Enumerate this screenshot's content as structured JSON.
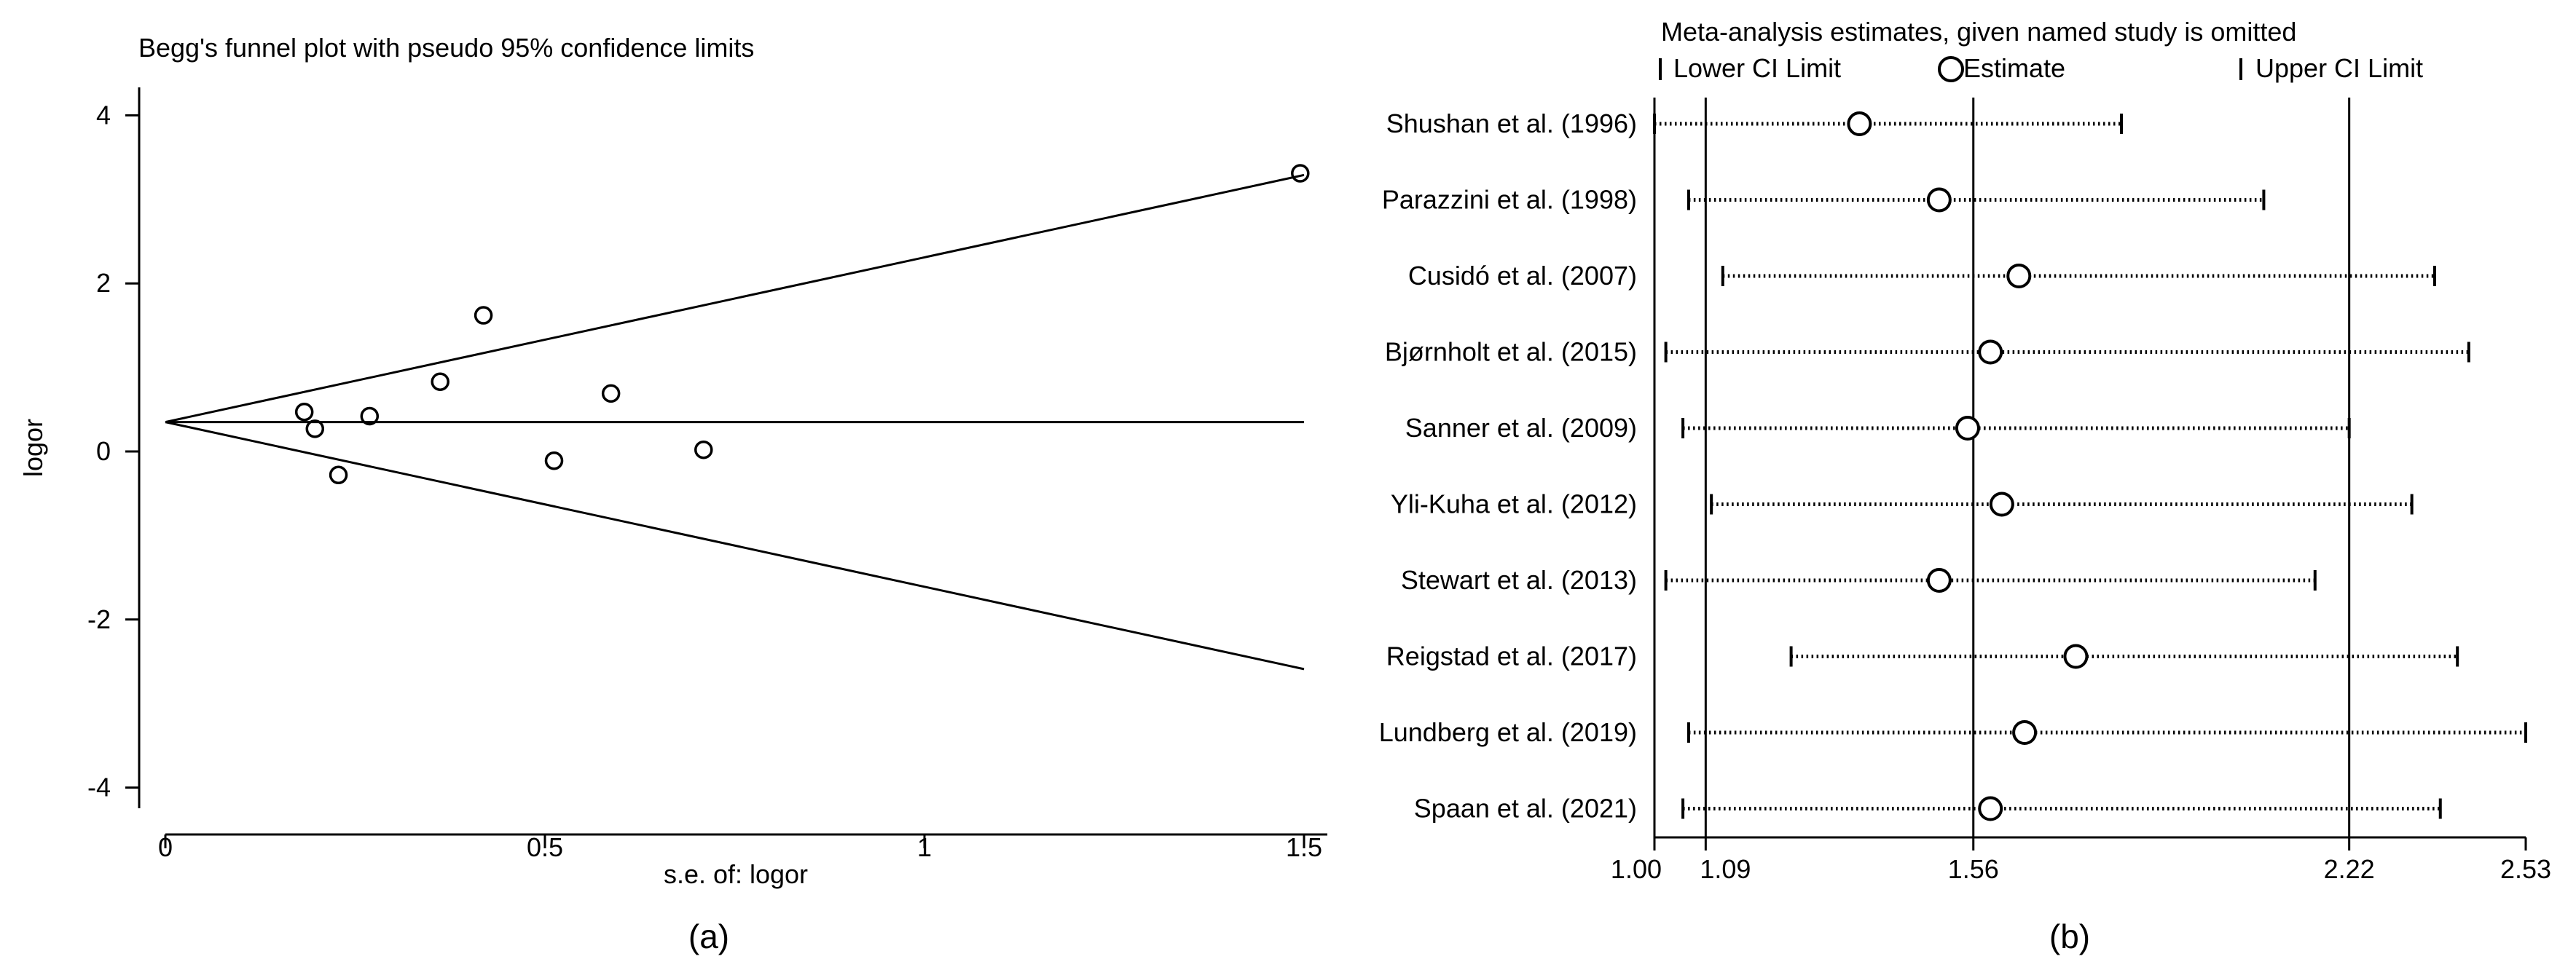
{
  "chart_data": [
    {
      "type": "scatter",
      "panel_label": "(a)",
      "title": "Begg's funnel plot with pseudo 95% confidence limits",
      "xlabel": "s.e. of: logor",
      "ylabel": "logor",
      "xlim": [
        0,
        1.5
      ],
      "ylim": [
        -4,
        4
      ],
      "x_ticks": [
        "0",
        "0.5",
        "1",
        "1.5"
      ],
      "x_tick_values": [
        0,
        0.5,
        1,
        1.5
      ],
      "y_ticks": [
        "4",
        "2",
        "0",
        "-2",
        "-4"
      ],
      "y_tick_values": [
        4,
        2,
        0,
        -2,
        -4
      ],
      "pooled_estimate": 0.35,
      "funnel_limits": {
        "upper_at_1_5": 3.29,
        "lower_at_1_5": -2.59
      },
      "points": [
        {
          "x": 0.183,
          "y": 0.47
        },
        {
          "x": 0.197,
          "y": 0.27
        },
        {
          "x": 0.228,
          "y": -0.28
        },
        {
          "x": 0.269,
          "y": 0.42
        },
        {
          "x": 0.362,
          "y": 0.83
        },
        {
          "x": 0.419,
          "y": 1.62
        },
        {
          "x": 0.512,
          "y": -0.11
        },
        {
          "x": 0.587,
          "y": 0.69
        },
        {
          "x": 0.709,
          "y": 0.02
        },
        {
          "x": 1.495,
          "y": 3.31
        }
      ]
    },
    {
      "type": "forest",
      "panel_label": "(b)",
      "title": "Meta-analysis estimates, given named study is omitted",
      "legend": [
        "Lower CI Limit",
        "Estimate",
        "Upper CI Limit"
      ],
      "x_ticks": [
        "1.00",
        "1.09",
        "1.56",
        "2.22",
        "2.53"
      ],
      "x_tick_values": [
        1.0,
        1.09,
        1.56,
        2.22,
        2.53
      ],
      "reference_lines": [
        1.09,
        1.56,
        2.22
      ],
      "xlim": [
        1.0,
        2.53
      ],
      "studies": [
        {
          "label": "Shushan et al. (1996)",
          "lower": 1.0,
          "estimate": 1.36,
          "upper": 1.82
        },
        {
          "label": "Parazzini et al. (1998)",
          "lower": 1.06,
          "estimate": 1.5,
          "upper": 2.07
        },
        {
          "label": "Cusidó et al. (2007)",
          "lower": 1.12,
          "estimate": 1.64,
          "upper": 2.37
        },
        {
          "label": "Bjørnholt et al. (2015)",
          "lower": 1.02,
          "estimate": 1.59,
          "upper": 2.43
        },
        {
          "label": "Sanner et al. (2009)",
          "lower": 1.05,
          "estimate": 1.55,
          "upper": 2.22
        },
        {
          "label": "Yli-Kuha et al. (2012)",
          "lower": 1.1,
          "estimate": 1.61,
          "upper": 2.33
        },
        {
          "label": "Stewart et al. (2013)",
          "lower": 1.02,
          "estimate": 1.5,
          "upper": 2.16
        },
        {
          "label": "Reigstad et al. (2017)",
          "lower": 1.24,
          "estimate": 1.74,
          "upper": 2.41
        },
        {
          "label": "Lundberg et al. (2019)",
          "lower": 1.06,
          "estimate": 1.65,
          "upper": 2.53
        },
        {
          "label": "Spaan et al. (2021)",
          "lower": 1.05,
          "estimate": 1.59,
          "upper": 2.38
        }
      ]
    }
  ]
}
